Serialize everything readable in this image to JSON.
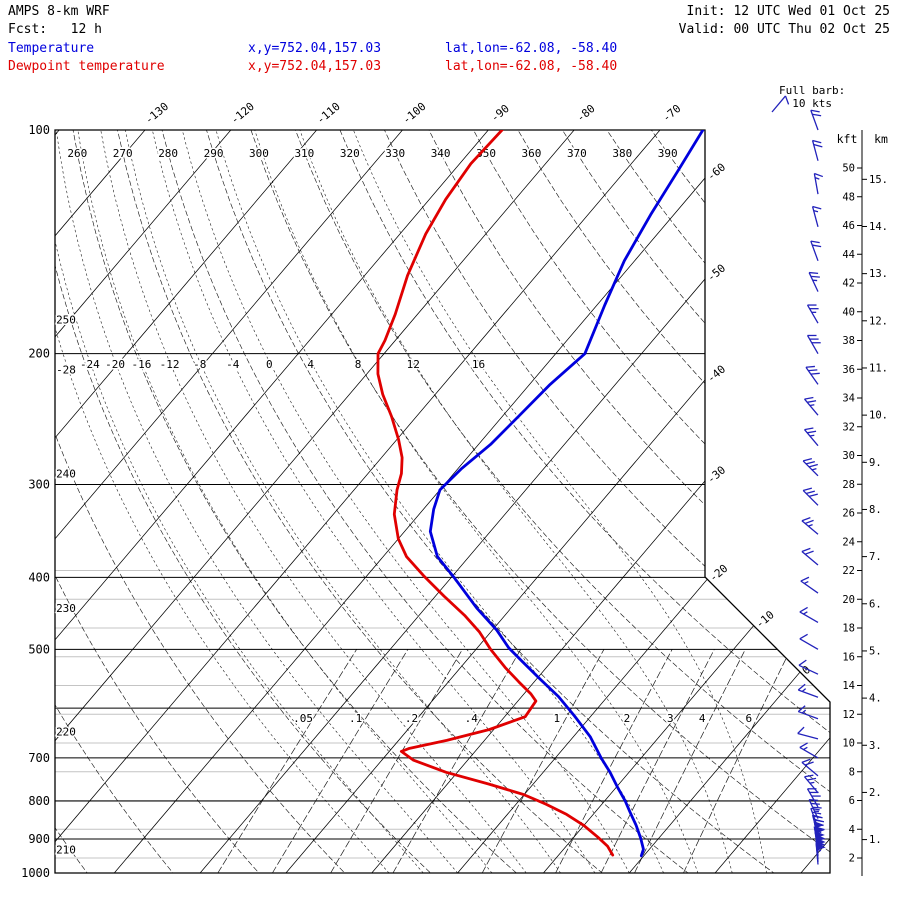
{
  "header": {
    "model": "AMPS 8-km WRF",
    "fcst": "Fcst:   12 h",
    "init": "Init: 12 UTC Wed 01 Oct 25",
    "valid": "Valid: 00 UTC Thu 02 Oct 25"
  },
  "legend": {
    "temperature": {
      "label": "Temperature",
      "xy": "x,y=752.04,157.03",
      "latlon": "lat,lon=-62.08, -58.40",
      "color": "#0000dd"
    },
    "dewpoint": {
      "label": "Dewpoint temperature",
      "xy": "x,y=752.04,157.03",
      "latlon": "lat,lon=-62.08, -58.40",
      "color": "#e00000"
    }
  },
  "barb_legend": {
    "line1": "Full barb:",
    "line2": "10 kts"
  },
  "colors": {
    "temperature": "#0000dd",
    "dewpoint": "#e00000",
    "barbs": "#2222bb",
    "grid": "#1a1a1a",
    "height_lines": "#c4c4c4"
  },
  "axes": {
    "pressure_ticks": [
      100,
      200,
      300,
      400,
      500,
      600,
      700,
      800,
      900,
      1000
    ],
    "pressure_labeled": [
      100,
      200,
      300,
      400,
      500,
      700,
      800,
      900,
      1000
    ],
    "isotherm_range": [
      -140,
      30
    ],
    "isotherm_step": 10,
    "isotherm_top_labels": [
      -130,
      -120,
      -110,
      -100,
      -90,
      -80,
      -70
    ],
    "isotherm_right_labels": [
      -60,
      -50,
      -40,
      -30,
      -20,
      -10,
      0
    ],
    "theta_top_labels": [
      260,
      270,
      280,
      290,
      300,
      310,
      320,
      330,
      340,
      350,
      360,
      370,
      380,
      390
    ],
    "theta_left_labels": [
      250,
      240,
      230,
      220,
      210
    ],
    "theta_min": 210,
    "theta_max": 390,
    "moist_adiabats": [
      -28,
      -24,
      -20,
      -16,
      -12,
      -8,
      -4,
      0,
      4,
      8,
      12,
      16
    ],
    "moist_row_labels": [
      -24,
      -20,
      -16,
      -12,
      -8,
      -4,
      0,
      4,
      8,
      12,
      16
    ],
    "mixing_ratio": {
      "values": [
        0.05,
        0.1,
        0.2,
        0.4,
        1,
        2,
        3,
        4,
        6
      ],
      "labels": [
        ".05",
        ".1",
        ".2",
        ".4",
        "1",
        "2",
        "3",
        "4",
        "6"
      ]
    },
    "kft_header": "kft",
    "km_header": "km",
    "kft_ticks": [
      50,
      48,
      46,
      44,
      42,
      40,
      38,
      36,
      34,
      32,
      30,
      28,
      26,
      24,
      22,
      20,
      18,
      16,
      14,
      12,
      10,
      8,
      6,
      4,
      2
    ],
    "km_ticks": [
      15,
      14,
      13,
      12,
      11,
      10,
      9,
      8,
      7,
      6,
      5,
      4,
      3,
      2,
      1
    ],
    "height_gray_lines_kft": [
      2,
      4,
      6,
      8,
      10,
      12,
      14,
      16,
      18,
      20,
      22
    ]
  },
  "chart_data": {
    "type": "skewt_logp_sounding",
    "units": {
      "pressure": "hPa",
      "temperature": "C",
      "wind": "kt"
    },
    "pressure_axis": {
      "min": 100,
      "max": 1000,
      "scale": "log"
    },
    "temperature_curve": [
      [
        100,
        -65.0
      ],
      [
        113,
        -63.9
      ],
      [
        130,
        -62.7
      ],
      [
        150,
        -61.2
      ],
      [
        172,
        -59.1
      ],
      [
        200,
        -56.6
      ],
      [
        220,
        -57.6
      ],
      [
        242,
        -58.1
      ],
      [
        265,
        -58.6
      ],
      [
        286,
        -59.6
      ],
      [
        305,
        -60.0
      ],
      [
        324,
        -58.8
      ],
      [
        347,
        -57.0
      ],
      [
        375,
        -53.7
      ],
      [
        400,
        -49.7
      ],
      [
        440,
        -44.0
      ],
      [
        471,
        -39.5
      ],
      [
        498,
        -36.3
      ],
      [
        520,
        -33.3
      ],
      [
        549,
        -29.5
      ],
      [
        579,
        -25.7
      ],
      [
        615,
        -21.9
      ],
      [
        656,
        -18.0
      ],
      [
        701,
        -14.6
      ],
      [
        732,
        -12.2
      ],
      [
        769,
        -9.7
      ],
      [
        800,
        -7.6
      ],
      [
        827,
        -6.0
      ],
      [
        863,
        -3.9
      ],
      [
        898,
        -2.1
      ],
      [
        929,
        -0.7
      ],
      [
        948,
        -0.3
      ]
    ],
    "dewpoint_curve": [
      [
        100,
        -88.4
      ],
      [
        111,
        -88.7
      ],
      [
        124,
        -88.1
      ],
      [
        138,
        -87.0
      ],
      [
        157,
        -85.0
      ],
      [
        177,
        -82.6
      ],
      [
        192,
        -81.2
      ],
      [
        200,
        -80.7
      ],
      [
        213,
        -78.7
      ],
      [
        227,
        -76.1
      ],
      [
        243,
        -72.9
      ],
      [
        261,
        -69.8
      ],
      [
        276,
        -67.6
      ],
      [
        290,
        -66.1
      ],
      [
        305,
        -65.0
      ],
      [
        329,
        -62.9
      ],
      [
        355,
        -60.0
      ],
      [
        375,
        -57.3
      ],
      [
        398,
        -53.4
      ],
      [
        424,
        -49.0
      ],
      [
        450,
        -44.7
      ],
      [
        474,
        -41.3
      ],
      [
        500,
        -38.3
      ],
      [
        529,
        -34.8
      ],
      [
        553,
        -31.8
      ],
      [
        574,
        -29.2
      ],
      [
        587,
        -27.9
      ],
      [
        616,
        -27.6
      ],
      [
        641,
        -30.5
      ],
      [
        663,
        -34.4
      ],
      [
        680,
        -38.0
      ],
      [
        686,
        -38.6
      ],
      [
        705,
        -36.3
      ],
      [
        732,
        -31.3
      ],
      [
        759,
        -25.2
      ],
      [
        784,
        -20.1
      ],
      [
        808,
        -16.5
      ],
      [
        834,
        -13.1
      ],
      [
        863,
        -10.0
      ],
      [
        895,
        -7.2
      ],
      [
        920,
        -5.2
      ],
      [
        946,
        -3.7
      ]
    ],
    "wind_barbs": [
      [
        100,
        20,
        340
      ],
      [
        110,
        20,
        345
      ],
      [
        122,
        15,
        350
      ],
      [
        135,
        15,
        345
      ],
      [
        150,
        20,
        340
      ],
      [
        165,
        25,
        335
      ],
      [
        182,
        25,
        330
      ],
      [
        200,
        30,
        330
      ],
      [
        220,
        30,
        325
      ],
      [
        242,
        25,
        320
      ],
      [
        266,
        25,
        320
      ],
      [
        292,
        35,
        315
      ],
      [
        320,
        30,
        315
      ],
      [
        350,
        25,
        310
      ],
      [
        385,
        20,
        310
      ],
      [
        420,
        15,
        305
      ],
      [
        460,
        15,
        300
      ],
      [
        500,
        10,
        300
      ],
      [
        540,
        10,
        295
      ],
      [
        580,
        15,
        290
      ],
      [
        620,
        15,
        290
      ],
      [
        660,
        10,
        285
      ],
      [
        700,
        15,
        300
      ],
      [
        740,
        20,
        310
      ],
      [
        780,
        25,
        320
      ],
      [
        815,
        30,
        330
      ],
      [
        845,
        35,
        335
      ],
      [
        870,
        40,
        340
      ],
      [
        890,
        45,
        345
      ],
      [
        910,
        50,
        350
      ],
      [
        925,
        50,
        350
      ],
      [
        938,
        55,
        352
      ],
      [
        948,
        55,
        355
      ],
      [
        958,
        50,
        355
      ],
      [
        966,
        55,
        355
      ],
      [
        974,
        50,
        355
      ]
    ]
  }
}
